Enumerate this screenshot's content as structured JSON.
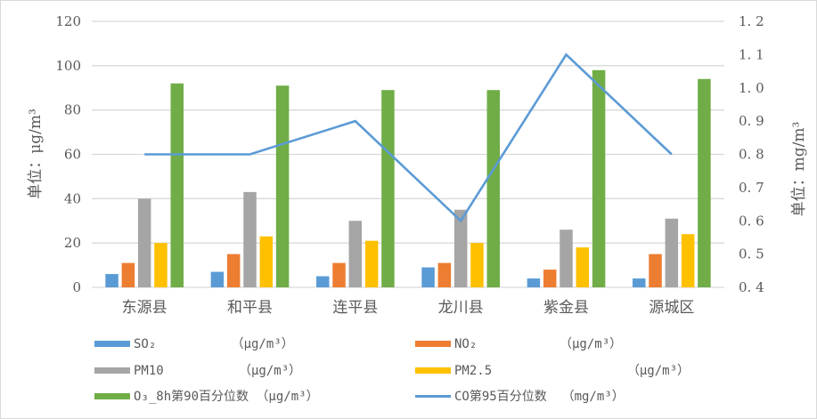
{
  "chart_data": {
    "type": "bar",
    "categories": [
      "东源县",
      "和平县",
      "连平县",
      "龙川县",
      "紫金县",
      "源城区"
    ],
    "series": [
      {
        "name": "SO₂ (μg/m³)",
        "type": "bar",
        "axis": "left",
        "color": "#5b9bd5",
        "values": [
          6,
          7,
          5,
          9,
          4,
          4
        ]
      },
      {
        "name": "NO₂ (μg/m³)",
        "type": "bar",
        "axis": "left",
        "color": "#ed7d31",
        "values": [
          11,
          15,
          11,
          11,
          8,
          15
        ]
      },
      {
        "name": "PM10 (μg/m³)",
        "type": "bar",
        "axis": "left",
        "color": "#a5a5a5",
        "values": [
          40,
          43,
          30,
          35,
          26,
          31
        ]
      },
      {
        "name": "PM2.5 (μg/m³)",
        "type": "bar",
        "axis": "left",
        "color": "#ffc000",
        "values": [
          20,
          23,
          21,
          20,
          18,
          24
        ]
      },
      {
        "name": "O₃_8h第90百分位数 (μg/m³)",
        "type": "bar",
        "axis": "left",
        "color": "#70ad47",
        "values": [
          92,
          91,
          89,
          89,
          98,
          94
        ]
      },
      {
        "name": "CO第95百分位数 (mg/m³)",
        "type": "line",
        "axis": "right",
        "color": "#5b9bd5",
        "values": [
          0.8,
          0.8,
          0.9,
          0.6,
          1.1,
          0.8
        ]
      }
    ],
    "ylabel": "单位：μg/m³",
    "y2label": "单位：mg/m³",
    "ylim": [
      0,
      120
    ],
    "y2lim": [
      0.4,
      1.2
    ],
    "yticks": [
      "0",
      "20",
      "40",
      "60",
      "80",
      "100",
      "120"
    ],
    "y2ticks": [
      "0.4",
      "0.5",
      "0.6",
      "0.7",
      "0.8",
      "0.9",
      "1.0",
      "1.1",
      "1.2"
    ],
    "grid": true,
    "legend_position": "bottom"
  },
  "legend": [
    {
      "label": "SO₂          （μg/m³）",
      "kind": "bar",
      "color": "#5b9bd5"
    },
    {
      "label": "NO₂           （μg/m³）",
      "kind": "bar",
      "color": "#ed7d31"
    },
    {
      "label": "PM10          （μg/m³）",
      "kind": "bar",
      "color": "#a5a5a5"
    },
    {
      "label": "PM2.5                  （μg/m³）",
      "kind": "bar",
      "color": "#ffc000"
    },
    {
      "label": "O₃_8h第90百分位数 （μg/m³）",
      "kind": "bar",
      "color": "#70ad47"
    },
    {
      "label": "CO第95百分位数  （mg/m³）",
      "kind": "line",
      "color": "#5b9bd5"
    }
  ]
}
